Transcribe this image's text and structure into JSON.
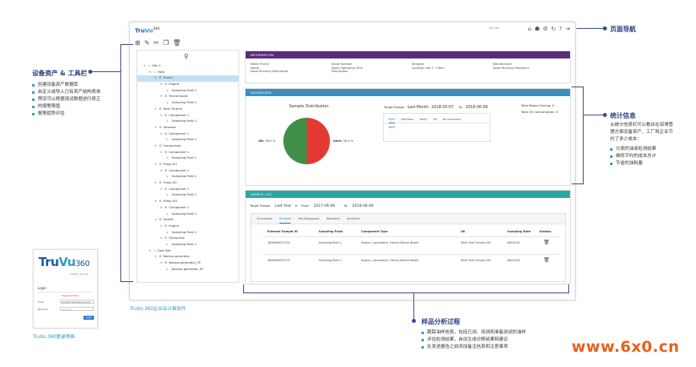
{
  "app": {
    "logo_tru": "Tru",
    "logo_vu": "Vu",
    "logo_num": "360",
    "username": "ms_cat",
    "top_icons": [
      "home-icon",
      "group-icon",
      "settings-icon",
      "refresh-icon",
      "help-icon",
      "logout-icon"
    ],
    "toolbar_icons": [
      "add-icon",
      "edit-icon",
      "cut-icon",
      "copy-icon",
      "delete-icon"
    ]
  },
  "tree": {
    "rows": [
      {
        "label": "Site 1",
        "level": 0,
        "glyph": "▾",
        "selected": false
      },
      {
        "label": "Main",
        "level": 1,
        "glyph": "▾",
        "selected": false
      },
      {
        "label": "Truck1",
        "level": 2,
        "glyph": "▾",
        "selected": true
      },
      {
        "label": "Engine",
        "level": 3,
        "glyph": "▾",
        "selected": false
      },
      {
        "label": "Sampling Point 1",
        "level": 4,
        "glyph": "↳",
        "selected": false
      },
      {
        "label": "Transmission",
        "level": 3,
        "glyph": "▾",
        "selected": false
      },
      {
        "label": "Sampling Point 1",
        "level": 4,
        "glyph": "↳",
        "selected": false
      },
      {
        "label": "Main Turbine",
        "level": 2,
        "glyph": "▾",
        "selected": false
      },
      {
        "label": "Component 1",
        "level": 3,
        "glyph": "▾",
        "selected": false
      },
      {
        "label": "Sampling Point 1",
        "level": 4,
        "glyph": "↳",
        "selected": false
      },
      {
        "label": "Gearbox",
        "level": 2,
        "glyph": "▾",
        "selected": false
      },
      {
        "label": "Component 1",
        "level": 3,
        "glyph": "▾",
        "selected": false
      },
      {
        "label": "Sampling Point 1",
        "level": 4,
        "glyph": "↳",
        "selected": false
      },
      {
        "label": "Compressor",
        "level": 2,
        "glyph": "▾",
        "selected": false
      },
      {
        "label": "Component 1",
        "level": 3,
        "glyph": "▾",
        "selected": false
      },
      {
        "label": "Sampling Point 1",
        "level": 4,
        "glyph": "↳",
        "selected": false
      },
      {
        "label": "Pump #1",
        "level": 2,
        "glyph": "▾",
        "selected": false
      },
      {
        "label": "Component 1",
        "level": 3,
        "glyph": "▾",
        "selected": false
      },
      {
        "label": "Sampling Point 1",
        "level": 4,
        "glyph": "↳",
        "selected": false
      },
      {
        "label": "Pump #2",
        "level": 2,
        "glyph": "▾",
        "selected": false
      },
      {
        "label": "Component 1",
        "level": 3,
        "glyph": "▾",
        "selected": false
      },
      {
        "label": "Sampling Point 1",
        "level": 4,
        "glyph": "↳",
        "selected": false
      },
      {
        "label": "Pump #3",
        "level": 2,
        "glyph": "▾",
        "selected": false
      },
      {
        "label": "Component 1",
        "level": 3,
        "glyph": "▾",
        "selected": false
      },
      {
        "label": "Sampling Point 1",
        "level": 4,
        "glyph": "↳",
        "selected": false
      },
      {
        "label": "Forklift",
        "level": 2,
        "glyph": "▾",
        "selected": false
      },
      {
        "label": "Engine",
        "level": 3,
        "glyph": "▾",
        "selected": false
      },
      {
        "label": "Sampling Point 1",
        "level": 4,
        "glyph": "↳",
        "selected": false
      },
      {
        "label": "Hydraulics",
        "level": 3,
        "glyph": "▾",
        "selected": false
      },
      {
        "label": "Sampling Point 1",
        "level": 4,
        "glyph": "↳",
        "selected": false
      },
      {
        "label": "East Site",
        "level": 1,
        "glyph": "▾",
        "selected": false
      },
      {
        "label": "Backup generator",
        "level": 2,
        "glyph": "▾",
        "selected": false
      },
      {
        "label": "Backup generator_CP",
        "level": 3,
        "glyph": "▾",
        "selected": false
      },
      {
        "label": "Backup generator_SP",
        "level": 4,
        "glyph": "↳",
        "selected": false
      }
    ]
  },
  "info": {
    "header": "INFORMATION",
    "col1": [
      "Name  Truck1",
      "Model",
      "Asset Running Description"
    ],
    "col2": [
      "Serial Number",
      "Asset Operating Time",
      "Description"
    ],
    "col3": [
      "Keyword",
      "Location  Site 1 → Main"
    ],
    "col4": [
      "Manufacturer",
      "Asset Running Frequency"
    ]
  },
  "dashboard": {
    "header": "DASHBOARD",
    "chart_title": "Sample Distribution",
    "target_range_label": "Target Range:",
    "target_range_value": "Last Month",
    "from_value": "2018-05-07",
    "to_label": "To:",
    "to_value": "2018-06-06",
    "tabs": [
      "Alert",
      "Attention",
      "Verify",
      "OK",
      "No comment"
    ],
    "active_tab": "Alert",
    "tab_content": "WIST",
    "total_repair_label": "Total Repair Saving:",
    "total_repair_value": "0",
    "total_oil_label": "Total Oil Consumption:",
    "total_oil_value": "0",
    "ok_label": "OK:",
    "ok_value": "50.0 %",
    "alert_label": "Alert:",
    "alert_value": "50.0 %",
    "colors": {
      "ok": "#3f8f49",
      "alert": "#e23a33"
    }
  },
  "chart_data": {
    "type": "pie",
    "title": "Sample Distribution",
    "categories": [
      "OK",
      "Alert"
    ],
    "values": [
      50.0,
      50.0
    ]
  },
  "samples": {
    "header": "SAMPLE LIST",
    "target_range_label": "Target Range:",
    "target_range_value": "Last Year",
    "from_label": "From:",
    "from_value": "2017-06-06",
    "to_label": "To:",
    "to_value": "2018-06-06",
    "tabs": [
      "Scheduled",
      "Unlisted",
      "Pre-Diagnosed",
      "Released",
      "Archived"
    ],
    "active_tab": "Unlisted",
    "columns": [
      "External Sample ID",
      "Sampling Point",
      "Component Type",
      "Oil",
      "Sampling Date",
      "Actions"
    ],
    "rows": [
      [
        "1806060675724",
        "Sampling Point 1",
        "Engine, Locomotive, Electro Motive Diesel",
        "Shell Shell Omala 150",
        "6/6/2018"
      ],
      [
        "1806060675719",
        "Sampling Point 1",
        "Engine, Locomotive, Electro Motive Diesel",
        "Shell Shell Omala 150",
        "6/6/2018"
      ]
    ]
  },
  "login": {
    "logo_tru": "Tru",
    "logo_vu": "Vu",
    "logo_num": "360",
    "subtitle": "Insight. On-site.",
    "title": "Login",
    "required": "* Required Fields",
    "email_label": "Email",
    "email_value": "ssqhbfmig@qqwmail.com",
    "password_label": "Password",
    "password_value": "••••••••",
    "button": "Login"
  },
  "annotations": {
    "left_title": "设备资产 & 工具栏",
    "left_items": [
      "创建设备资产数据库",
      "自定义或导入已有资产结构表单",
      "预设可以根据测试数据进行修正",
      "的报警限值",
      "报警趋势评估"
    ],
    "nav_title": "页面导航",
    "stats_title": "统计信息",
    "stats_desc": "从统计信息栏可以看出在润滑管理方面设备资产、工厂和企业节约了多少成本：",
    "stats_items": [
      "分类的油液检测结果",
      "维修节约的成本总计",
      "节省的油耗量"
    ],
    "sample_title": "样品分析过程",
    "sample_items": [
      "跟踪油样信息，包括已测、待测和准备测试的油样",
      "评估检测结果，自动生成诊断结果和建议",
      "在发送报告之前添加备注信息和注意事项"
    ],
    "caption_app": "TruVu 360企业云计算软件",
    "caption_login": "TruVu 360登录界面",
    "watermark": "www.6x0.cn"
  }
}
